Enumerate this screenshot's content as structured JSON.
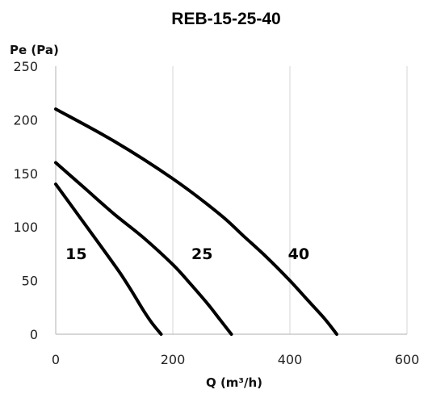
{
  "chart_data": {
    "type": "line",
    "title": "REB-15-25-40",
    "xlabel": "Q (m³/h)",
    "ylabel": "Pe (Pa)",
    "xlim": [
      0,
      600
    ],
    "ylim": [
      0,
      250
    ],
    "x_ticks": [
      0,
      200,
      400,
      600
    ],
    "y_ticks": [
      0,
      50,
      100,
      150,
      200,
      250
    ],
    "grid": "vertical",
    "legend": "inline labels",
    "series": [
      {
        "name": "15",
        "label_at": [
          35,
          70
        ],
        "points": [
          [
            0,
            140
          ],
          [
            40,
            110
          ],
          [
            80,
            80
          ],
          [
            110,
            57
          ],
          [
            130,
            40
          ],
          [
            150,
            22
          ],
          [
            165,
            10
          ],
          [
            180,
            0
          ]
        ]
      },
      {
        "name": "25",
        "label_at": [
          250,
          70
        ],
        "points": [
          [
            0,
            160
          ],
          [
            50,
            136
          ],
          [
            100,
            112
          ],
          [
            150,
            90
          ],
          [
            200,
            65
          ],
          [
            230,
            47
          ],
          [
            260,
            28
          ],
          [
            280,
            14
          ],
          [
            300,
            0
          ]
        ]
      },
      {
        "name": "40",
        "label_at": [
          415,
          70
        ],
        "points": [
          [
            0,
            210
          ],
          [
            100,
            180
          ],
          [
            200,
            145
          ],
          [
            280,
            112
          ],
          [
            320,
            92
          ],
          [
            360,
            72
          ],
          [
            400,
            50
          ],
          [
            430,
            32
          ],
          [
            460,
            14
          ],
          [
            480,
            0
          ]
        ]
      }
    ]
  }
}
